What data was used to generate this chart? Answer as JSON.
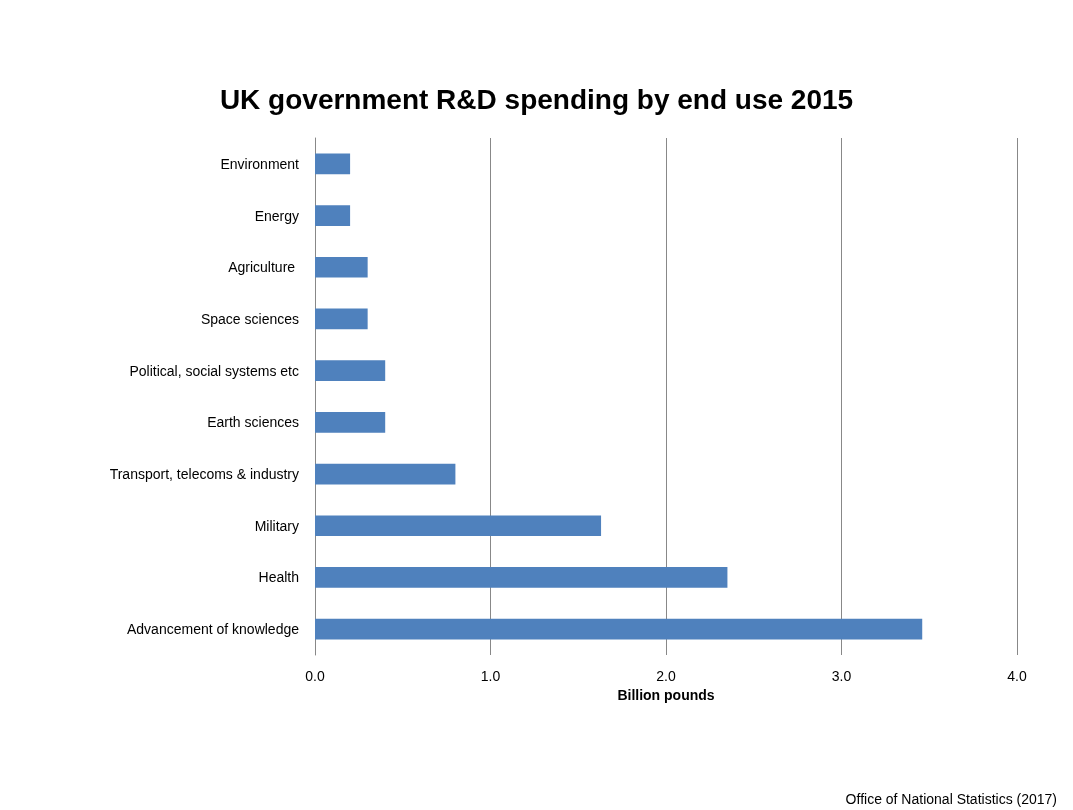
{
  "chart_data": {
    "type": "bar",
    "orientation": "horizontal",
    "title": "UK government R&D spending by end use 2015",
    "xlabel": "Billion pounds",
    "categories": [
      "Environment",
      "Energy",
      "Agriculture ",
      "Space sciences",
      "Political, social systems etc",
      "Earth sciences",
      "Transport, telecoms & industry",
      "Military",
      "Health",
      "Advancement of knowledge"
    ],
    "values": [
      0.2,
      0.2,
      0.3,
      0.3,
      0.4,
      0.4,
      0.8,
      1.63,
      2.35,
      3.46
    ],
    "color": "#4f81bd",
    "xlim": [
      0,
      4
    ],
    "xticks": [
      {
        "value": 0,
        "label": "0.0"
      },
      {
        "value": 1,
        "label": "1.0"
      },
      {
        "value": 2,
        "label": "2.0"
      },
      {
        "value": 3,
        "label": "3.0"
      },
      {
        "value": 4,
        "label": "4.0"
      }
    ],
    "grid": "x",
    "annotations": [
      "Office of National Statistics (2017)"
    ]
  }
}
